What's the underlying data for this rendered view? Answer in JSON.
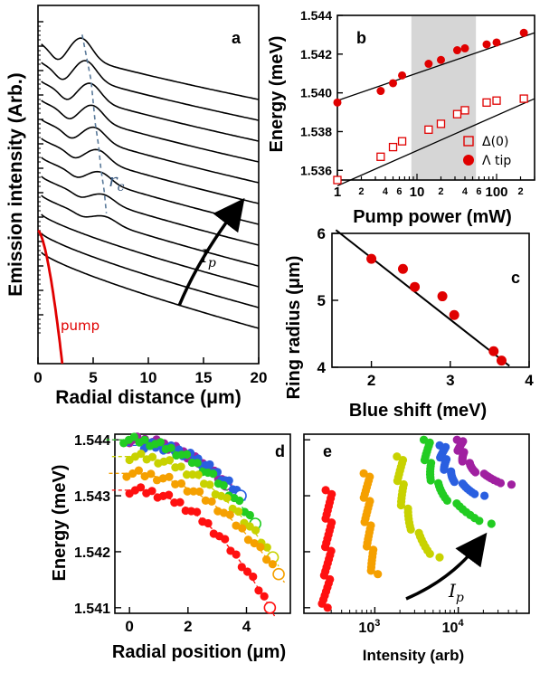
{
  "chart_data": [
    {
      "panel": "a",
      "type": "line",
      "xlabel": "Radial distance (μm)",
      "ylabel": "Emission intensity (Arb.)",
      "xlim": [
        0,
        20
      ],
      "xticks": [
        "0",
        "5",
        "10",
        "15",
        "20"
      ],
      "curve_count": 12,
      "peak_positions_um": [
        4.0,
        4.4,
        4.8,
        5.0,
        5.2,
        5.5,
        5.7,
        6.0,
        6.2
      ],
      "annotations": {
        "ring_label": "r",
        "ring_sub": "c",
        "pump_label": "pump",
        "arrow_label": "I",
        "arrow_sub": "p"
      },
      "colors": {
        "curves": "#000000",
        "pump": "#e00000",
        "rc_line": "#5a7a9a"
      }
    },
    {
      "panel": "b",
      "type": "scatter",
      "xlabel": "Pump power (mW)",
      "ylabel": "Energy (meV)",
      "xscale": "log",
      "xlim": [
        1,
        300
      ],
      "ylim": [
        1.5355,
        1.544
      ],
      "yticks": [
        "1.536",
        "1.538",
        "1.540",
        "1.542",
        "1.544"
      ],
      "xtick_labels": [
        {
          "v": 1,
          "t": "1"
        },
        {
          "v": 2,
          "t": "2"
        },
        {
          "v": 4,
          "t": "4"
        },
        {
          "v": 6,
          "t": "6"
        },
        {
          "v": 10,
          "t": "10"
        },
        {
          "v": 20,
          "t": "2"
        },
        {
          "v": 40,
          "t": "4"
        },
        {
          "v": 60,
          "t": "6"
        },
        {
          "v": 100,
          "t": "100"
        },
        {
          "v": 200,
          "t": "2"
        }
      ],
      "shaded_region": [
        8.5,
        55
      ],
      "series": [
        {
          "name": "Λ tip",
          "marker": "filled-circle",
          "color": "#e00000",
          "x": [
            1,
            3.5,
            5,
            6.5,
            14,
            20,
            32,
            40,
            75,
            100,
            220
          ],
          "y": [
            1.5395,
            1.5401,
            1.5405,
            1.5409,
            1.5415,
            1.5417,
            1.5422,
            1.5423,
            1.5425,
            1.5426,
            1.5431
          ],
          "fit": [
            [
              1,
              1.5396
            ],
            [
              300,
              1.5431
            ]
          ]
        },
        {
          "name": "Δ(0)",
          "marker": "open-square",
          "color": "#e00000",
          "x": [
            1,
            3.5,
            5,
            6.5,
            14,
            20,
            32,
            40,
            75,
            100,
            220
          ],
          "y": [
            1.5355,
            1.5367,
            1.5372,
            1.5375,
            1.5381,
            1.5384,
            1.5389,
            1.5391,
            1.5395,
            1.5396,
            1.5397
          ],
          "fit": [
            [
              1,
              1.5352
            ],
            [
              300,
              1.5397
            ]
          ]
        }
      ]
    },
    {
      "panel": "c",
      "type": "scatter",
      "xlabel": "Blue shift (meV)",
      "ylabel": "Ring radius (μm)",
      "xlim": [
        1.5,
        4
      ],
      "ylim": [
        4,
        6
      ],
      "xticks": [
        "2",
        "3",
        "4"
      ],
      "yticks": [
        "4",
        "5",
        "6"
      ],
      "points": {
        "x": [
          2.0,
          2.4,
          2.55,
          2.9,
          3.05,
          3.55,
          3.65
        ],
        "y": [
          5.62,
          5.47,
          5.2,
          5.06,
          4.78,
          4.24,
          4.1
        ]
      },
      "fit": [
        [
          1.55,
          6.05
        ],
        [
          3.75,
          4.02
        ]
      ]
    },
    {
      "panel": "d",
      "type": "scatter",
      "xlabel": "Radial position (μm)",
      "ylabel": "Energy (meV)",
      "xlim": [
        -0.5,
        5.5
      ],
      "ylim": [
        1.5409,
        1.5441
      ],
      "xticks": [
        "0",
        "2",
        "4"
      ],
      "yticks": [
        "1.541",
        "1.542",
        "1.543",
        "1.544"
      ],
      "series": [
        {
          "color": "#a020a0",
          "x0": 0,
          "x1": 3.3,
          "e0": 1.544,
          "e1": 1.5432
        },
        {
          "color": "#2a5fe0",
          "x0": 0.5,
          "x1": 3.8,
          "e0": 1.5439,
          "e1": 1.543
        },
        {
          "color": "#22cc22",
          "x0": -0.2,
          "x1": 4.3,
          "e0": 1.544,
          "e1": 1.5425
        },
        {
          "color": "#c8d200",
          "x0": 0,
          "x1": 4.9,
          "e0": 1.5437,
          "e1": 1.5419
        },
        {
          "color": "#f5a000",
          "x0": -0.1,
          "x1": 5.1,
          "e0": 1.5434,
          "e1": 1.5416
        },
        {
          "color": "#ff1010",
          "x0": 0,
          "x1": 4.8,
          "e0": 1.5431,
          "e1": 1.541
        }
      ]
    },
    {
      "panel": "e",
      "type": "scatter",
      "xlabel": "Intensity (arb)",
      "xscale": "log",
      "xticks": [
        {
          "v": 1000,
          "t": "10",
          "sup": "3"
        },
        {
          "v": 10000,
          "t": "10",
          "sup": "4"
        }
      ],
      "annotations": {
        "arrow_label": "I",
        "arrow_sub": "p"
      }
    }
  ]
}
